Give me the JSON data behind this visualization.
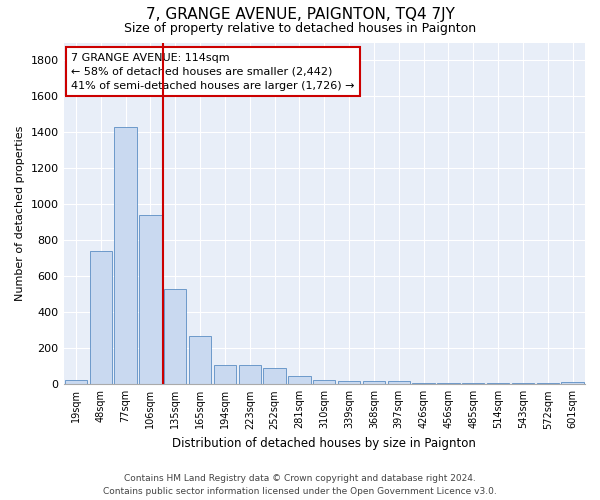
{
  "title": "7, GRANGE AVENUE, PAIGNTON, TQ4 7JY",
  "subtitle": "Size of property relative to detached houses in Paignton",
  "xlabel": "Distribution of detached houses by size in Paignton",
  "ylabel": "Number of detached properties",
  "footer_line1": "Contains HM Land Registry data © Crown copyright and database right 2024.",
  "footer_line2": "Contains public sector information licensed under the Open Government Licence v3.0.",
  "bar_labels": [
    "19sqm",
    "48sqm",
    "77sqm",
    "106sqm",
    "135sqm",
    "165sqm",
    "194sqm",
    "223sqm",
    "252sqm",
    "281sqm",
    "310sqm",
    "339sqm",
    "368sqm",
    "397sqm",
    "426sqm",
    "456sqm",
    "485sqm",
    "514sqm",
    "543sqm",
    "572sqm",
    "601sqm"
  ],
  "bar_values": [
    25,
    740,
    1430,
    940,
    530,
    270,
    105,
    105,
    90,
    45,
    25,
    18,
    18,
    18,
    8,
    8,
    8,
    5,
    5,
    5,
    15
  ],
  "bar_color": "#c9d9f0",
  "bar_edge_color": "#5b8ec4",
  "fig_bg_color": "#ffffff",
  "plot_bg_color": "#e8eef8",
  "grid_color": "#ffffff",
  "annotation_text_line1": "7 GRANGE AVENUE: 114sqm",
  "annotation_text_line2": "← 58% of detached houses are smaller (2,442)",
  "annotation_text_line3": "41% of semi-detached houses are larger (1,726) →",
  "annotation_box_color": "#ffffff",
  "annotation_box_edge_color": "#cc0000",
  "vline_color": "#cc0000",
  "vline_x": 3.5,
  "ylim": [
    0,
    1900
  ],
  "yticks": [
    0,
    200,
    400,
    600,
    800,
    1000,
    1200,
    1400,
    1600,
    1800
  ]
}
